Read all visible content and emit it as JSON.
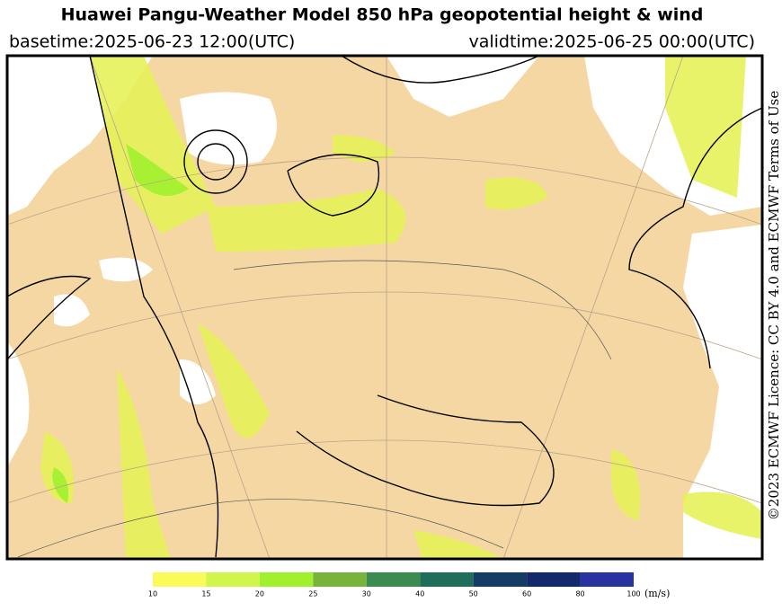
{
  "header": {
    "title": "Huawei Pangu-Weather Model 850 hPa geopotential height & wind",
    "basetime": "basetime:2025-06-23 12:00(UTC)",
    "validtime": "validtime:2025-06-25 00:00(UTC)"
  },
  "license": "©2023 ECMWF Licence: CC BY 4.0 and ECMWF Terms of Use",
  "colorbar": {
    "ticks": [
      10,
      15,
      20,
      25,
      30,
      40,
      50,
      60,
      80,
      100
    ],
    "colors": [
      "#fafa5a",
      "#d2f54b",
      "#a0f02d",
      "#78b43c",
      "#3c8c50",
      "#1e6e5a",
      "#143c64",
      "#14286e",
      "#2832a0"
    ],
    "unit": "(m/s)"
  }
}
